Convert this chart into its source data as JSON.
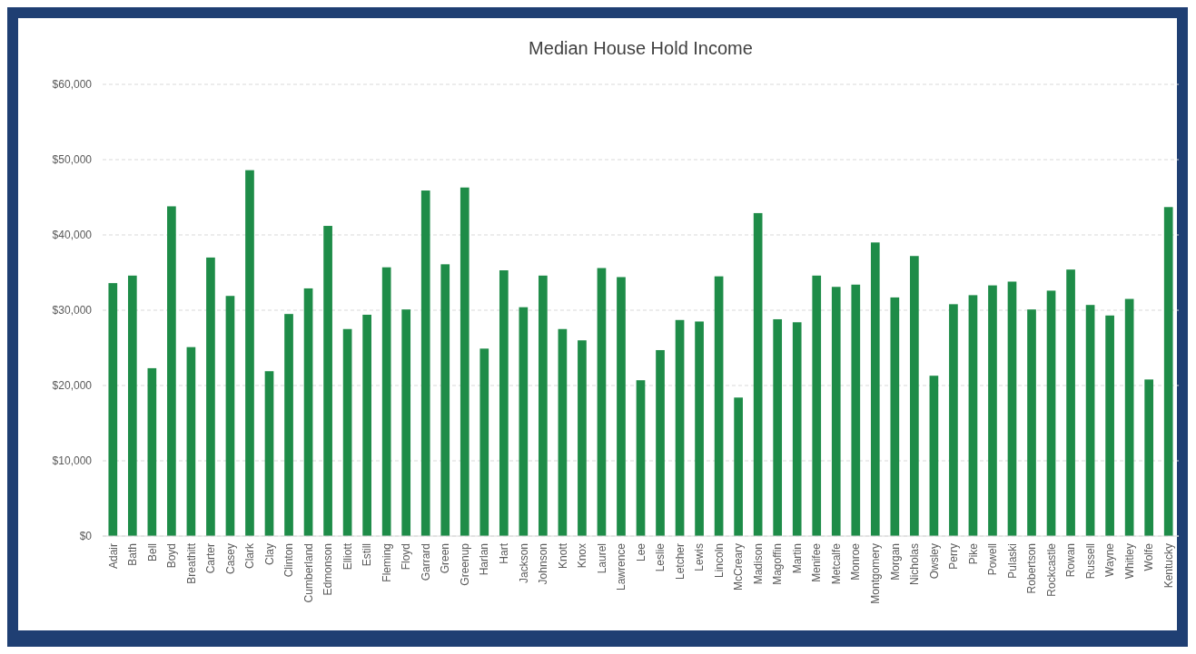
{
  "chart_data": {
    "type": "bar",
    "title": "Median House Hold Income",
    "categories": [
      "Adair",
      "Bath",
      "Bell",
      "Boyd",
      "Breathitt",
      "Carter",
      "Casey",
      "Clark",
      "Clay",
      "Clinton",
      "Cumberland",
      "Edmonson",
      "Elliott",
      "Estill",
      "Fleming",
      "Floyd",
      "Garrard",
      "Green",
      "Greenup",
      "Harlan",
      "Hart",
      "Jackson",
      "Johnson",
      "Knott",
      "Knox",
      "Laurel",
      "Lawrence",
      "Lee",
      "Leslie",
      "Letcher",
      "Lewis",
      "Lincoln",
      "McCreary",
      "Madison",
      "Magoffin",
      "Martin",
      "Menifee",
      "Metcalfe",
      "Monroe",
      "Montgomery",
      "Morgan",
      "Nicholas",
      "Owsley",
      "Perry",
      "Pike",
      "Powell",
      "Pulaski",
      "Robertson",
      "Rockcastle",
      "Rowan",
      "Russell",
      "Wayne",
      "Whitley",
      "Wolfe",
      "Kentucky"
    ],
    "values": [
      33600,
      34600,
      22300,
      43800,
      25100,
      37000,
      31900,
      48600,
      21900,
      29500,
      32900,
      41200,
      27500,
      29400,
      35700,
      30100,
      45900,
      36100,
      46300,
      24900,
      35300,
      30400,
      34600,
      27500,
      26000,
      35600,
      34400,
      20700,
      24700,
      28700,
      28500,
      34500,
      18400,
      42900,
      28800,
      28400,
      34600,
      33100,
      33400,
      39000,
      31700,
      37200,
      21300,
      30800,
      32000,
      33300,
      33800,
      30100,
      32600,
      35400,
      30700,
      29300,
      31500,
      20800,
      43700
    ],
    "color": "#1e8c48",
    "ylim": [
      0,
      60000
    ],
    "yticks": [
      {
        "value": 0,
        "label": "$0"
      },
      {
        "value": 10000,
        "label": "$10,000"
      },
      {
        "value": 20000,
        "label": "$20,000"
      },
      {
        "value": 30000,
        "label": "$30,000"
      },
      {
        "value": 40000,
        "label": "$40,000"
      },
      {
        "value": 50000,
        "label": "$50,000"
      },
      {
        "value": 60000,
        "label": "$60,000"
      }
    ],
    "grid": "y"
  }
}
